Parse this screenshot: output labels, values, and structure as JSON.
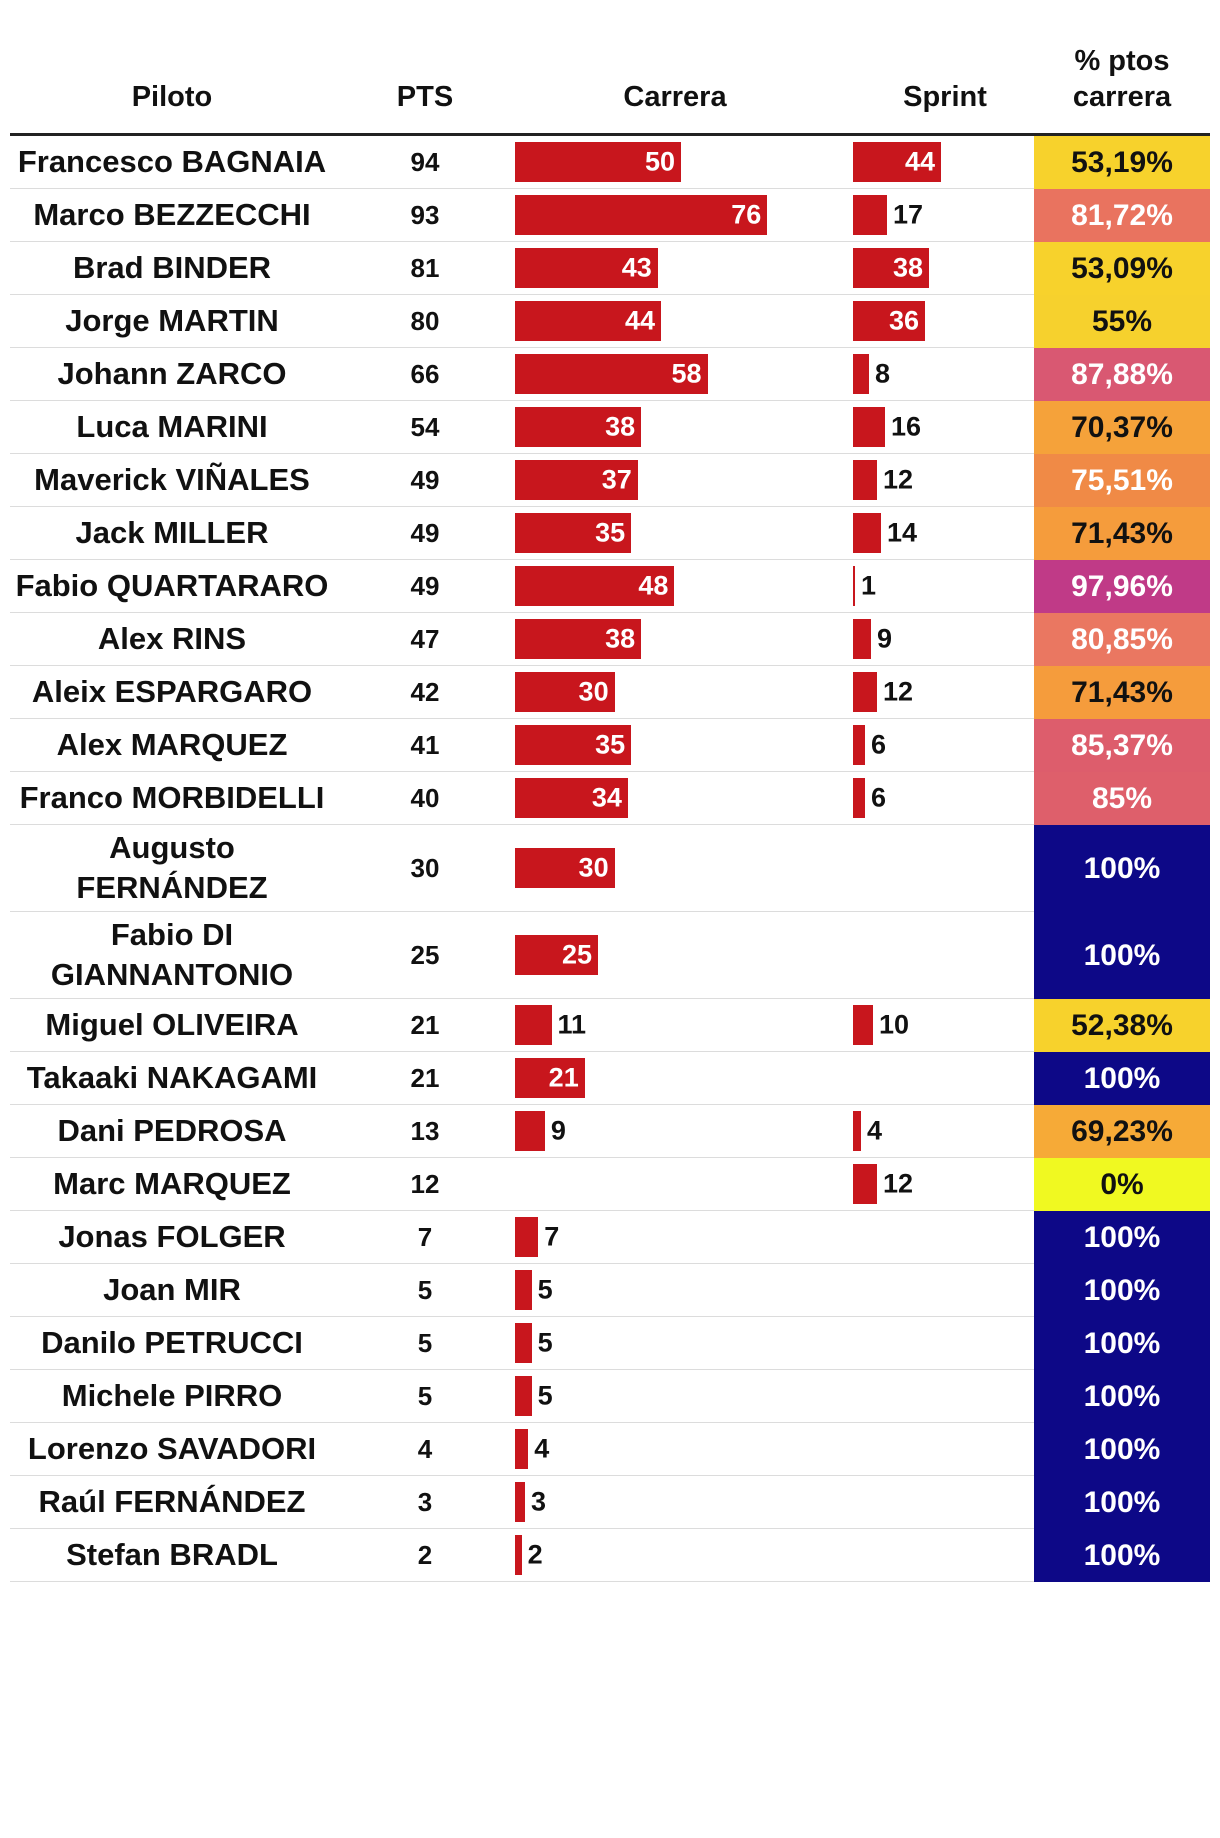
{
  "chart_data": {
    "type": "table",
    "columns": [
      "Piloto",
      "PTS",
      "Carrera",
      "Sprint",
      "% ptos carrera"
    ],
    "rows": [
      {
        "name": "Francesco BAGNAIA",
        "pts": 94,
        "race": 50,
        "sprint": 44,
        "pct": "53,19%",
        "color": "#f7d22c"
      },
      {
        "name": "Marco BEZZECCHI",
        "pts": 93,
        "race": 76,
        "sprint": 17,
        "pct": "81,72%",
        "color": "#e9735f"
      },
      {
        "name": "Brad BINDER",
        "pts": 81,
        "race": 43,
        "sprint": 38,
        "pct": "53,09%",
        "color": "#f7d22c"
      },
      {
        "name": "Jorge MARTIN",
        "pts": 80,
        "race": 44,
        "sprint": 36,
        "pct": "55%",
        "color": "#f6d12d"
      },
      {
        "name": "Johann ZARCO",
        "pts": 66,
        "race": 58,
        "sprint": 8,
        "pct": "87,88%",
        "color": "#d95872"
      },
      {
        "name": "Luca MARINI",
        "pts": 54,
        "race": 38,
        "sprint": 16,
        "pct": "70,37%",
        "color": "#f5a23a"
      },
      {
        "name": "Maverick VIÑALES",
        "pts": 49,
        "race": 37,
        "sprint": 12,
        "pct": "75,51%",
        "color": "#f08a46"
      },
      {
        "name": "Jack MILLER",
        "pts": 49,
        "race": 35,
        "sprint": 14,
        "pct": "71,43%",
        "color": "#f59c3c"
      },
      {
        "name": "Fabio QUARTARARO",
        "pts": 49,
        "race": 48,
        "sprint": 1,
        "pct": "97,96%",
        "color": "#c03a87"
      },
      {
        "name": "Alex RINS",
        "pts": 47,
        "race": 38,
        "sprint": 9,
        "pct": "80,85%",
        "color": "#ea7761"
      },
      {
        "name": "Aleix ESPARGARO",
        "pts": 42,
        "race": 30,
        "sprint": 12,
        "pct": "71,43%",
        "color": "#f59c3c"
      },
      {
        "name": "Alex MARQUEZ",
        "pts": 41,
        "race": 35,
        "sprint": 6,
        "pct": "85,37%",
        "color": "#dd5d6c"
      },
      {
        "name": "Franco MORBIDELLI",
        "pts": 40,
        "race": 34,
        "sprint": 6,
        "pct": "85%",
        "color": "#de5f6b"
      },
      {
        "name": "Augusto FERNÁNDEZ",
        "name_lines": [
          "Augusto",
          "FERNÁNDEZ"
        ],
        "pts": 30,
        "race": 30,
        "sprint": null,
        "pct": "100%",
        "color": "#0d0887"
      },
      {
        "name": "Fabio DI GIANNANTONIO",
        "name_lines": [
          "Fabio DI",
          "GIANNANTONIO"
        ],
        "pts": 25,
        "race": 25,
        "sprint": null,
        "pct": "100%",
        "color": "#0d0887"
      },
      {
        "name": "Miguel OLIVEIRA",
        "pts": 21,
        "race": 11,
        "sprint": 10,
        "pct": "52,38%",
        "color": "#f7d22c"
      },
      {
        "name": "Takaaki NAKAGAMI",
        "pts": 21,
        "race": 21,
        "sprint": null,
        "pct": "100%",
        "color": "#0d0887"
      },
      {
        "name": "Dani PEDROSA",
        "pts": 13,
        "race": 9,
        "sprint": 4,
        "pct": "69,23%",
        "color": "#f6aa37"
      },
      {
        "name": "Marc MARQUEZ",
        "pts": 12,
        "race": null,
        "sprint": 12,
        "pct": "0%",
        "color": "#f0f921"
      },
      {
        "name": "Jonas FOLGER",
        "pts": 7,
        "race": 7,
        "sprint": null,
        "pct": "100%",
        "color": "#0d0887"
      },
      {
        "name": "Joan MIR",
        "pts": 5,
        "race": 5,
        "sprint": null,
        "pct": "100%",
        "color": "#0d0887"
      },
      {
        "name": "Danilo PETRUCCI",
        "pts": 5,
        "race": 5,
        "sprint": null,
        "pct": "100%",
        "color": "#0d0887"
      },
      {
        "name": "Michele PIRRO",
        "pts": 5,
        "race": 5,
        "sprint": null,
        "pct": "100%",
        "color": "#0d0887"
      },
      {
        "name": "Lorenzo SAVADORI",
        "pts": 4,
        "race": 4,
        "sprint": null,
        "pct": "100%",
        "color": "#0d0887"
      },
      {
        "name": "Raúl FERNÁNDEZ",
        "pts": 3,
        "race": 3,
        "sprint": null,
        "pct": "100%",
        "color": "#0d0887"
      },
      {
        "name": "Stefan BRADL",
        "pts": 2,
        "race": 2,
        "sprint": null,
        "pct": "100%",
        "color": "#0d0887"
      }
    ],
    "header": {
      "name": "Piloto",
      "pts": "PTS",
      "race": "Carrera",
      "sprint": "Sprint",
      "pct_lines": [
        "% ptos",
        "carrera"
      ]
    },
    "bar_color": "#c8161d",
    "race_max": 76,
    "sprint_max": 44
  }
}
